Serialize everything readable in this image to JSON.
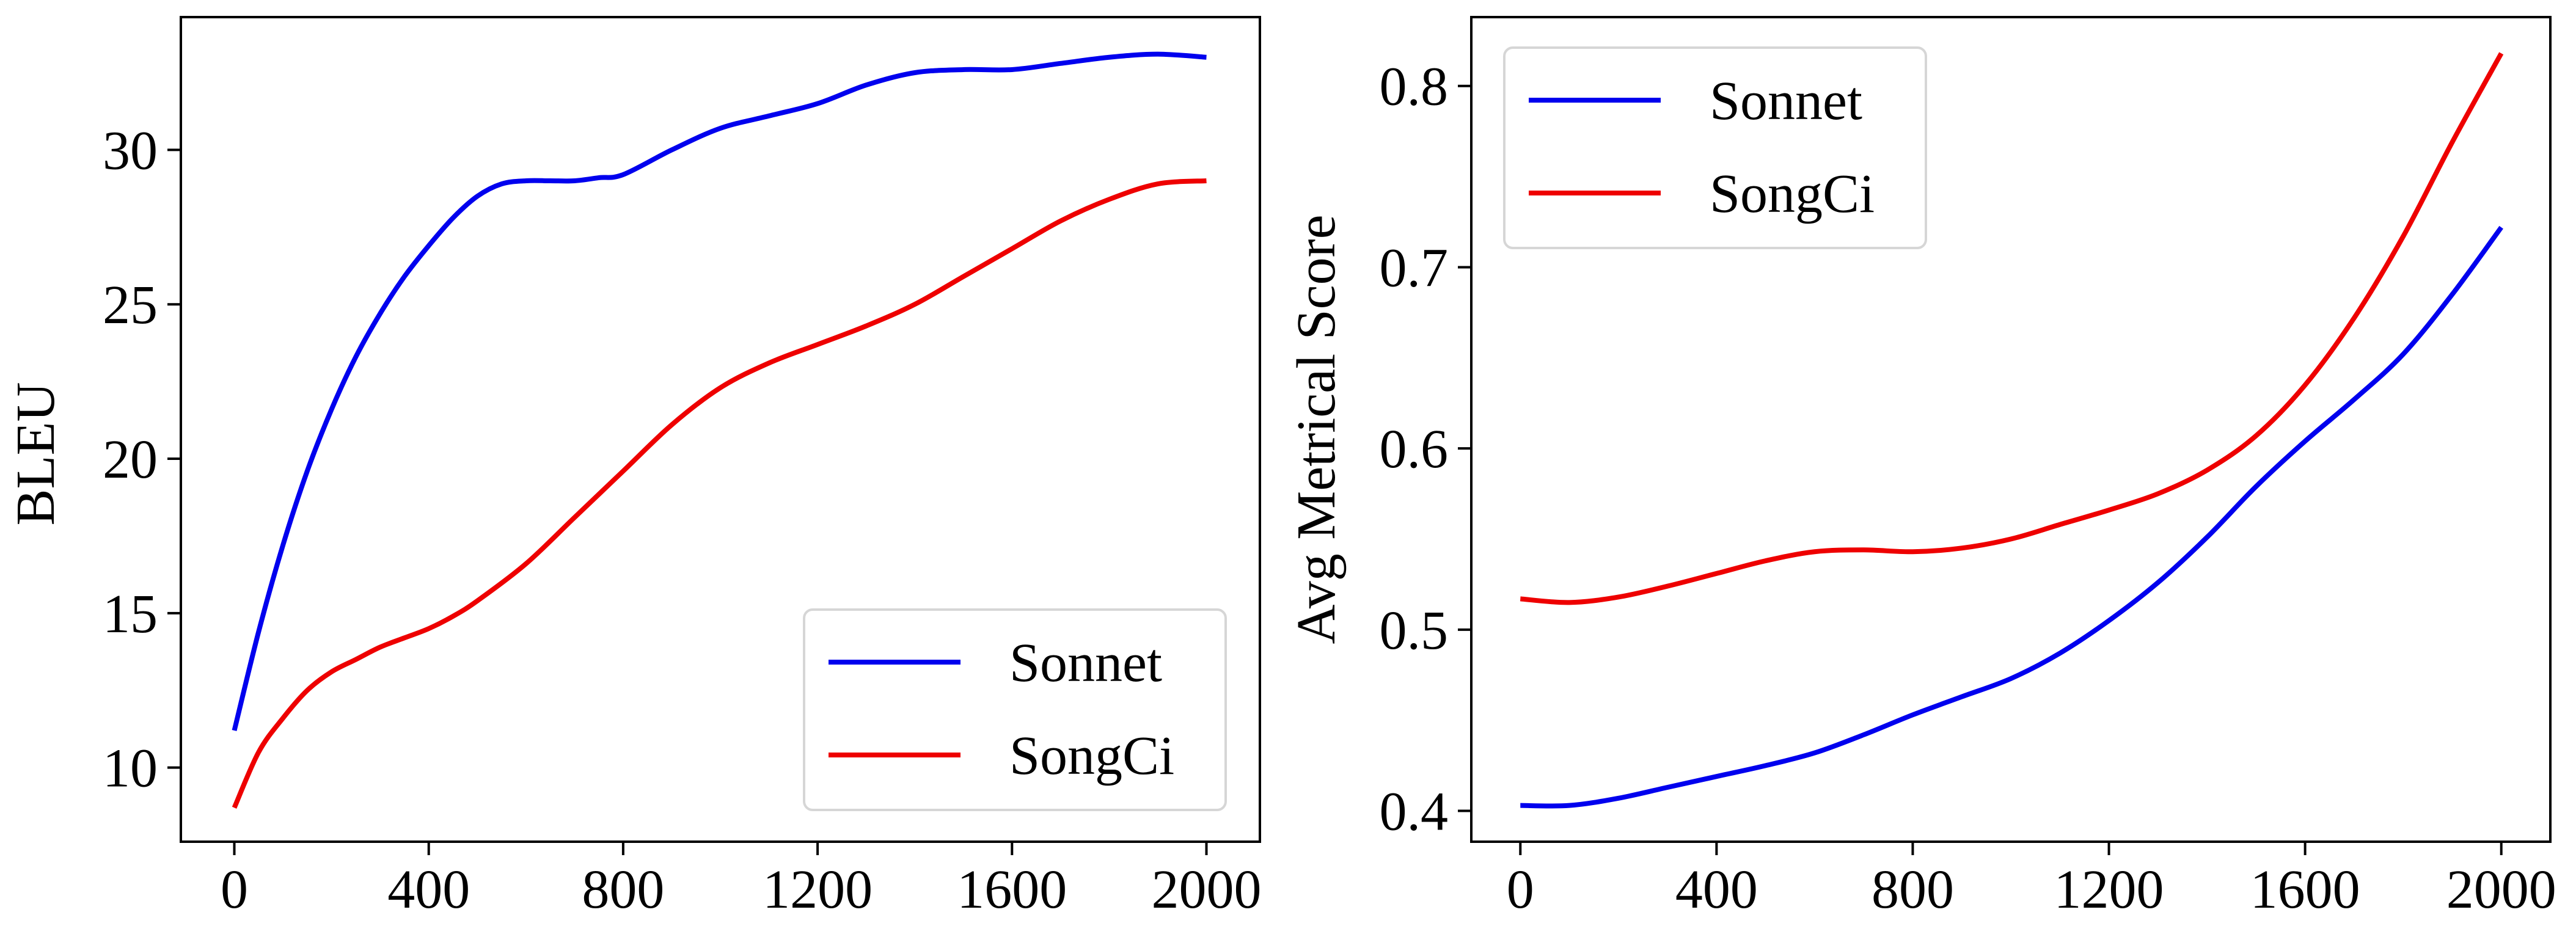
{
  "chart_data": [
    {
      "type": "line",
      "title": "",
      "xlabel": "",
      "ylabel": "BLEU",
      "xlim": [
        -110,
        2110
      ],
      "ylim": [
        7.6,
        34.3
      ],
      "xticks": [
        0,
        400,
        800,
        1200,
        1600,
        2000
      ],
      "xtick_labels": [
        "0",
        "400",
        "800",
        "1200",
        "1600",
        "2000"
      ],
      "yticks": [
        10,
        15,
        20,
        25,
        30
      ],
      "ytick_labels": [
        "10",
        "15",
        "20",
        "25",
        "30"
      ],
      "grid": false,
      "legend_position": "lower-right",
      "series": [
        {
          "name": "Sonnet",
          "color": "#0000ee",
          "x": [
            0,
            50,
            100,
            150,
            200,
            250,
            300,
            350,
            400,
            450,
            500,
            550,
            600,
            650,
            700,
            750,
            800,
            900,
            1000,
            1100,
            1200,
            1300,
            1400,
            1500,
            1600,
            1700,
            1800,
            1900,
            2000
          ],
          "y": [
            11.2,
            14.4,
            17.2,
            19.6,
            21.6,
            23.3,
            24.7,
            25.9,
            26.9,
            27.8,
            28.5,
            28.9,
            29.0,
            29.0,
            29.0,
            29.1,
            29.2,
            30.0,
            30.7,
            31.1,
            31.5,
            32.1,
            32.5,
            32.6,
            32.6,
            32.8,
            33.0,
            33.1,
            33.0
          ]
        },
        {
          "name": "SongCi",
          "color": "#ee0000",
          "x": [
            0,
            50,
            100,
            150,
            200,
            250,
            300,
            350,
            400,
            450,
            500,
            600,
            700,
            800,
            900,
            1000,
            1100,
            1200,
            1300,
            1400,
            1500,
            1600,
            1700,
            1800,
            1900,
            2000
          ],
          "y": [
            8.7,
            10.5,
            11.6,
            12.5,
            13.1,
            13.5,
            13.9,
            14.2,
            14.5,
            14.9,
            15.4,
            16.6,
            18.1,
            19.6,
            21.1,
            22.3,
            23.1,
            23.7,
            24.3,
            25.0,
            25.9,
            26.8,
            27.7,
            28.4,
            28.9,
            29.0
          ]
        }
      ]
    },
    {
      "type": "line",
      "title": "",
      "xlabel": "",
      "ylabel": "Avg Metrical Score",
      "xlim": [
        -100,
        2100
      ],
      "ylim": [
        0.383,
        0.838
      ],
      "xticks": [
        0,
        400,
        800,
        1200,
        1600,
        2000
      ],
      "xtick_labels": [
        "0",
        "400",
        "800",
        "1200",
        "1600",
        "2000"
      ],
      "yticks": [
        0.4,
        0.5,
        0.6,
        0.7,
        0.8
      ],
      "ytick_labels": [
        "0.4",
        "0.5",
        "0.6",
        "0.7",
        "0.8"
      ],
      "grid": false,
      "legend_position": "upper-left",
      "series": [
        {
          "name": "Sonnet",
          "color": "#0000ee",
          "x": [
            0,
            100,
            200,
            300,
            400,
            500,
            600,
            700,
            800,
            900,
            1000,
            1100,
            1200,
            1300,
            1400,
            1500,
            1600,
            1700,
            1800,
            1900,
            2000
          ],
          "y": [
            0.403,
            0.403,
            0.407,
            0.413,
            0.419,
            0.425,
            0.432,
            0.442,
            0.453,
            0.463,
            0.473,
            0.487,
            0.505,
            0.526,
            0.551,
            0.579,
            0.604,
            0.627,
            0.652,
            0.685,
            0.722
          ]
        },
        {
          "name": "SongCi",
          "color": "#ee0000",
          "x": [
            0,
            100,
            200,
            300,
            400,
            500,
            600,
            700,
            800,
            900,
            1000,
            1100,
            1200,
            1300,
            1400,
            1500,
            1600,
            1700,
            1800,
            1900,
            2000
          ],
          "y": [
            0.517,
            0.515,
            0.518,
            0.524,
            0.531,
            0.538,
            0.543,
            0.544,
            0.543,
            0.545,
            0.55,
            0.558,
            0.566,
            0.575,
            0.588,
            0.607,
            0.635,
            0.672,
            0.717,
            0.769,
            0.818
          ]
        }
      ]
    }
  ]
}
